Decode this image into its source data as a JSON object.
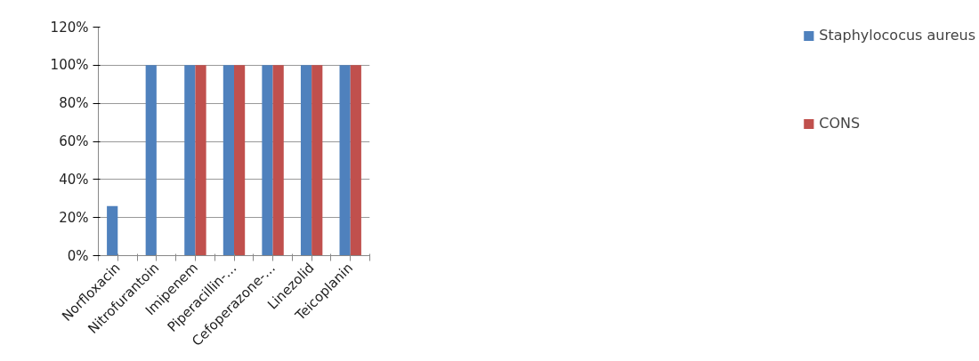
{
  "chart_data": {
    "type": "bar",
    "categories": [
      "Norfloxacin",
      "Nitrofurantoin",
      "Imipenem",
      "Piperacillin-…",
      "Cefoperazone-…",
      "Linezolid",
      "Teicoplanin"
    ],
    "series": [
      {
        "name": "Staphylococus aureus",
        "color": "#4f81bd",
        "values": [
          26,
          100,
          100,
          100,
          100,
          100,
          100
        ]
      },
      {
        "name": "CONS",
        "color": "#c0504d",
        "values": [
          null,
          null,
          100,
          100,
          100,
          100,
          100
        ]
      }
    ],
    "ylim": [
      0,
      120
    ],
    "yticks": [
      {
        "value": 0,
        "label": "0%"
      },
      {
        "value": 20,
        "label": "20%"
      },
      {
        "value": 40,
        "label": "40%"
      },
      {
        "value": 60,
        "label": "60%"
      },
      {
        "value": 80,
        "label": "80%"
      },
      {
        "value": 100,
        "label": "100%"
      },
      {
        "value": 120,
        "label": "120%"
      }
    ],
    "grid": "y",
    "legend": "right"
  }
}
